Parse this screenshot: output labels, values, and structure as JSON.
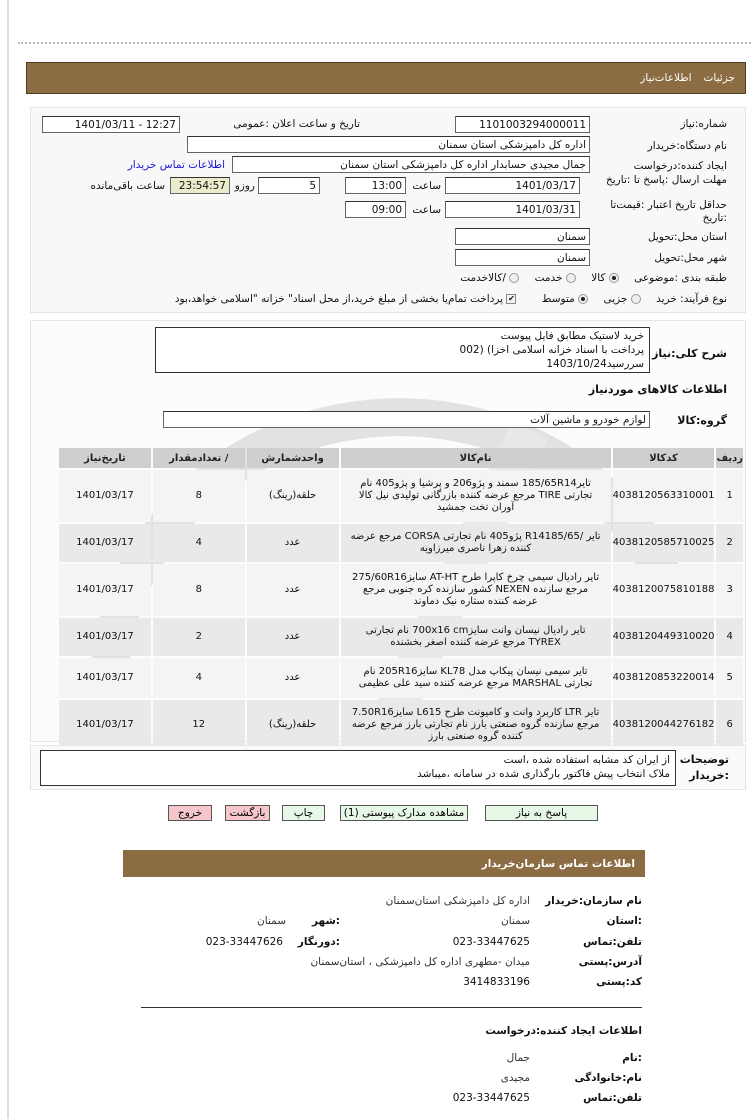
{
  "header": {
    "tab1": "جزئیات",
    "tab2": "اطلاعات‌نیاز"
  },
  "form": {
    "need_number_label": "شماره:نیاز",
    "need_number": "1101003294000011",
    "announce_label": "تاریخ و ساعت اعلان :عمومی",
    "announce_value": "1401/03/11 - 12:27",
    "buyer_label": "نام دستگاه:خریدار",
    "buyer_value": "اداره کل دامپزشکی استان سمنان",
    "requester_label": "ایجاد کننده:درخواست",
    "requester_value": "جمال مجیدی حسابدار اداره کل دامپزشکی استان سمنان",
    "contact_link": "اطلاعات تماس خریدار",
    "deadline_label": "مهلت ارسال :پاسخ تا :تاریخ",
    "deadline_date": "1401/03/17",
    "time_label": "ساعت",
    "deadline_time": "13:00",
    "days": "5",
    "days_label": "روزو",
    "remaining": "23:54:57",
    "remaining_label": "ساعت باقی‌مانده",
    "validity_label": "حداقل تاریخ اعتبار :قیمت‌تا :تاریخ",
    "validity_date": "1401/03/31",
    "validity_time": "09:00",
    "province_label": "استان محل:تحویل",
    "province": "سمنان",
    "city_label": "شهر محل:تحویل",
    "city": "سمنان",
    "category_label": "طبقه بندی :موضوعی",
    "category_options": [
      "کالا",
      "خدمت",
      "/کالاخدمت"
    ],
    "category_selected": "کالا",
    "process_label": "نوع فرآیند: خرید",
    "process_options": [
      "جزیی",
      "متوسط"
    ],
    "process_selected": "متوسط",
    "treasury_text": "پرداخت تمام‌یا بخشی از مبلغ خرید،از محل اسناد\" خزانه \"اسلامی خواهد،بود",
    "treasury_checked": true
  },
  "description": {
    "label": "شرح کلی:نیاز",
    "lines": [
      "خرید لاستیک مطابق فایل پیوست",
      "پرداخت با اسناد خزانه اسلامی اخزا) (002",
      "سررسید1403/10/24"
    ]
  },
  "goods": {
    "title": "اطلاعات  کالاهای موردنیاز",
    "group_label": "گروه:کالا",
    "group_value": "لوازم خودرو و ماشین آلات",
    "columns": [
      "ردیف",
      "کدکالا",
      "نام‌کالا",
      "واحدشمارش",
      "/ تعدادمقدار",
      "تاریخ‌نیاز"
    ],
    "rows": [
      {
        "n": "1",
        "code": "4038120563310001",
        "name": "تایر185/65R14 سمند و پژو206 و پرشیا و پژو405 نام تجارتی TIRE مرجع عرضه کننده  بازرگانی تولیدی نیل کالا آوران تخت جمشید",
        "unit": "حلقه(رینگ)",
        "qty": "8",
        "date": "1401/03/17"
      },
      {
        "n": "2",
        "code": "4038120585710025",
        "name": "تایر /R14185/65 پژو405 نام تجارتی CORSA مرجع عرضه کننده زهرا ناصری میرزاویه",
        "unit": "عدد",
        "qty": "4",
        "date": "1401/03/17"
      },
      {
        "n": "3",
        "code": "4038120075810188",
        "name": "تایر رادیال سیمی چرخ کاپرا طرح AT-HT سایز275/60R16 مرجع سازنده NEXEN کشور سازنده کره جنوبی مرجع عرضه کننده  ستاره نیک دماوند",
        "unit": "عدد",
        "qty": "8",
        "date": "1401/03/17"
      },
      {
        "n": "4",
        "code": "4038120449310020",
        "name": "تایر رادیال  نیسان وانت سایز700x16 cm نام تجارتی TYREX مرجع عرضه کننده اصغر بخشنده",
        "unit": "عدد",
        "qty": "2",
        "date": "1401/03/17"
      },
      {
        "n": "5",
        "code": "4038120853220014",
        "name": "تایر سیمی  نیسان پیکاپ مدل KL78 سایز205R16 نام تجارتی  MARSHAL مرجع عرضه کننده سید علی عظیمی",
        "unit": "عدد",
        "qty": "4",
        "date": "1401/03/17"
      },
      {
        "n": "6",
        "code": "4038120044276182",
        "name": "تایر LTR  کاربرد وانت و کامیونت طرح L615 سایز7.50R16 مرجع سازنده گروه صنعتی بارز نام تجارتی بارز مرجع عرضه کننده گروه صنعتی بارز",
        "unit": "حلقه(رینگ)",
        "qty": "12",
        "date": "1401/03/17"
      }
    ]
  },
  "notes": {
    "label1": "توضیحات",
    "label2": ":خریدار",
    "lines": [
      "از ایران کد مشابه استفاده شده ،است",
      "ملاک انتخاب پیش فاکتور بارگذاری شده در سامانه ،میباشد"
    ]
  },
  "buttons": {
    "reply": "پاسخ به نیاز",
    "attachments": "مشاهده مدارک پیوستی (1)",
    "print": "چاپ",
    "back": "بازگشت",
    "exit": "خروج"
  },
  "contact": {
    "title": "اطلاعات  تماس  سازمان‌خریدار",
    "org_label": "نام سازمان:خریدار",
    "org": "اداره کل دامپزشکی استان‌سمنان",
    "province_label": ":استان",
    "province": "سمنان",
    "city_label": ":شهر",
    "city": "سمنان",
    "phone_label": "تلفن:تماس",
    "phone": "023-33447625",
    "fax_label": ":دورنگار",
    "fax": "023-33447626",
    "address_label": "آدرس:پستی",
    "address": "میدان -مطهری اداره کل  دامپزشکی ، استان‌سمنان",
    "postal_label": "کد:پستی",
    "postal": "3414833196"
  },
  "creator": {
    "title": "اطلاعات ایجاد کننده:درخواست",
    "name_label": ":نام",
    "name": "جمال",
    "family_label": "نام:خانوادگی",
    "family": "مجیدی",
    "phone_label": "تلفن:تماس",
    "phone": "023-33447625"
  }
}
